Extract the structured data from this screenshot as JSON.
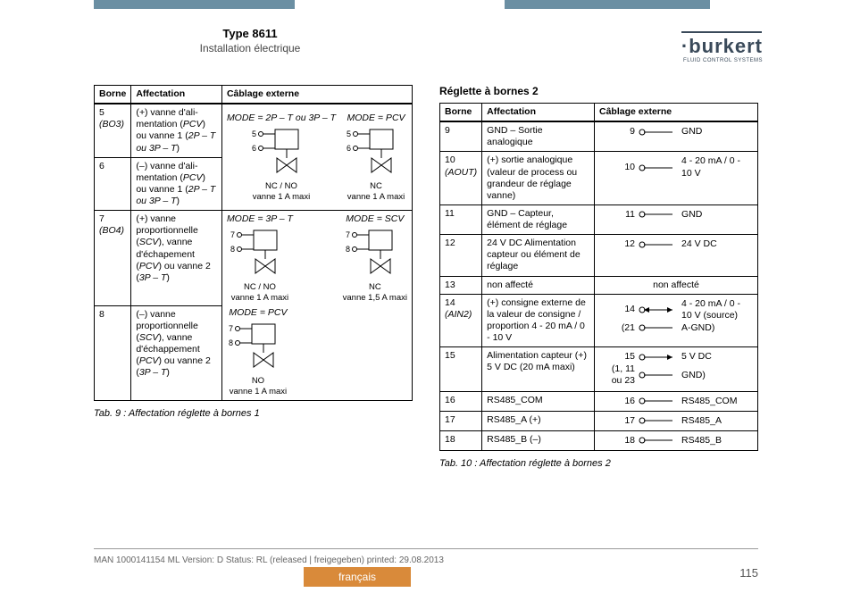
{
  "header": {
    "type_label": "Type 8611",
    "subtitle": "Installation électrique",
    "brand": "burkert",
    "brand_sub": "FLUID CONTROL SYSTEMS"
  },
  "colors": {
    "bar": "#6b8fa3",
    "tab": "#d98a3a"
  },
  "left_table": {
    "headers": [
      "Borne",
      "Affectation",
      "Câblage externe"
    ],
    "rows": [
      {
        "borne": "5",
        "borne_sub": "(BO3)",
        "aff": "(+) vanne d'ali­mentation (PCV) ou vanne 1 (2P – T ou 3P – T)"
      },
      {
        "borne": "6",
        "borne_sub": "",
        "aff": "(–) vanne d'ali­mentation (PCV) ou vanne 1 (2P – T ou 3P – T)"
      },
      {
        "borne": "7",
        "borne_sub": "(BO4)",
        "aff": "(+) vanne proportionnelle (SCV), vanne d'échapement (PCV) ou vanne 2 (3P – T)"
      },
      {
        "borne": "8",
        "borne_sub": "",
        "aff": "(–) vanne proportionnelle (SCV), vanne d'échap­pement (PCV) ou vanne 2 (3P – T)"
      }
    ],
    "wiring_top": {
      "left": {
        "mode": "MODE = 2P – T ou 3P – T",
        "pins": [
          "5",
          "6"
        ],
        "nc": "NC / NO",
        "note": "vanne 1 A maxi"
      },
      "right": {
        "mode": "MODE = PCV",
        "pins": [
          "5",
          "6"
        ],
        "nc": "NC",
        "note": "vanne 1 A maxi"
      }
    },
    "wiring_bottom": {
      "left": {
        "mode": "MODE = 3P – T",
        "pins": [
          "7",
          "8"
        ],
        "nc": "NC / NO",
        "note": "vanne 1 A maxi"
      },
      "right": {
        "mode": "MODE = SCV",
        "pins": [
          "7",
          "8"
        ],
        "nc": "NC",
        "note": "vanne 1,5 A maxi"
      },
      "third": {
        "mode": "MODE = PCV",
        "pins": [
          "7",
          "8"
        ],
        "nc": "NO",
        "note": "vanne 1 A maxi"
      }
    },
    "caption": "Tab. 9 :   Affectation réglette à bornes 1"
  },
  "right_table": {
    "title": "Réglette à bornes 2",
    "headers": [
      "Borne",
      "Affectation",
      "Câblage externe"
    ],
    "rows": [
      {
        "borne": "9",
        "borne_sub": "",
        "aff": "GND – Sortie analogique",
        "wire": [
          {
            "num": "9",
            "lab": "GND"
          }
        ]
      },
      {
        "borne": "10",
        "borne_sub": "(AOUT)",
        "aff": "(+) sortie analogique (valeur de process ou grandeur de réglage vanne)",
        "wire": [
          {
            "num": "10",
            "lab": "4 - 20 mA / 0 - 10 V"
          }
        ]
      },
      {
        "borne": "11",
        "borne_sub": "",
        "aff": "GND – Capteur, élément de réglage",
        "wire": [
          {
            "num": "11",
            "lab": "GND"
          }
        ]
      },
      {
        "borne": "12",
        "borne_sub": "",
        "aff": "24 V DC Alimen­tation capteur ou élément de réglage",
        "wire": [
          {
            "num": "12",
            "lab": "24 V DC"
          }
        ]
      },
      {
        "borne": "13",
        "borne_sub": "",
        "aff": "non affecté",
        "wire_na": "non affecté"
      },
      {
        "borne": "14",
        "borne_sub": "(AIN2)",
        "aff": "(+) consigne externe de la valeur de consigne / proportion 4 - 20 mA / 0 - 10 V",
        "wire": [
          {
            "num": "14",
            "lab": "4 - 20 mA / 0 - 10 V (source)",
            "arrow": true
          },
          {
            "num": "(21",
            "lab": "A-GND)"
          }
        ]
      },
      {
        "borne": "15",
        "borne_sub": "",
        "aff": "Alimentation capteur (+) 5 V DC (20 mA maxi)",
        "wire": [
          {
            "num": "15",
            "lab": "5 V DC",
            "out": true
          },
          {
            "num": "(1, 11 ou 23",
            "lab": "GND)"
          }
        ]
      },
      {
        "borne": "16",
        "borne_sub": "",
        "aff": "RS485_COM",
        "wire": [
          {
            "num": "16",
            "lab": "RS485_COM"
          }
        ]
      },
      {
        "borne": "17",
        "borne_sub": "",
        "aff": "RS485_A (+)",
        "wire": [
          {
            "num": "17",
            "lab": "RS485_A"
          }
        ]
      },
      {
        "borne": "18",
        "borne_sub": "",
        "aff": "RS485_B (–)",
        "wire": [
          {
            "num": "18",
            "lab": "RS485_B"
          }
        ]
      }
    ],
    "caption": "Tab. 10 : Affectation réglette à bornes 2"
  },
  "footer": {
    "meta": "MAN  1000141154  ML  Version: D Status: RL (released | freigegeben)  printed: 29.08.2013",
    "lang": "français",
    "page": "115"
  }
}
